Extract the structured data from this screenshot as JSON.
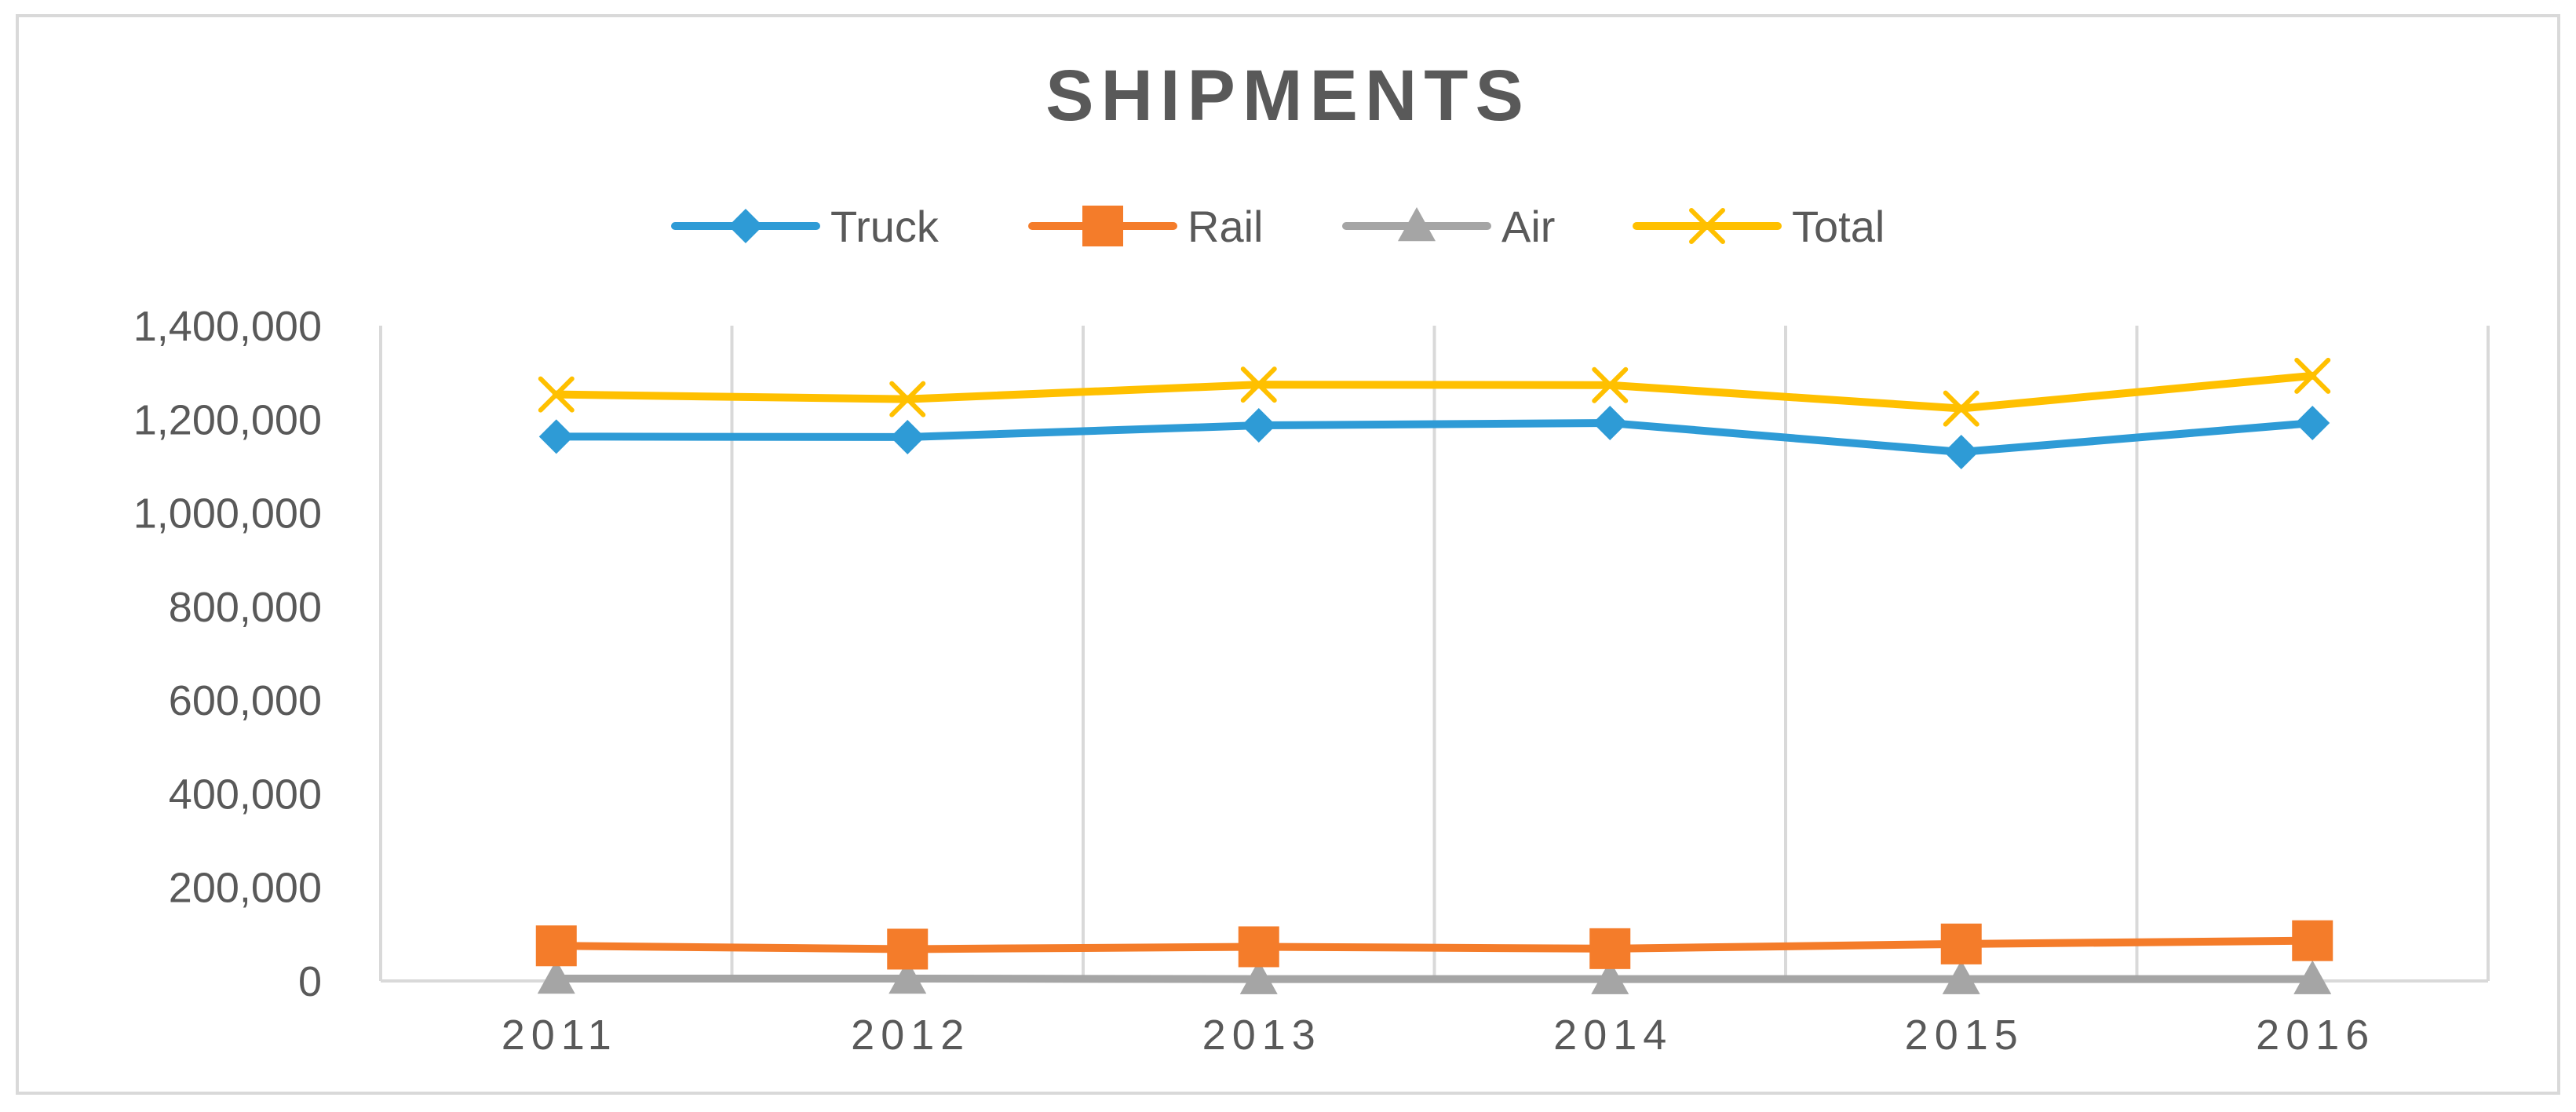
{
  "chart_data": {
    "type": "line",
    "title": "SHIPMENTS",
    "categories": [
      "2011",
      "2012",
      "2013",
      "2014",
      "2015",
      "2016"
    ],
    "series": [
      {
        "name": "Truck",
        "color": "#2e9bd6",
        "marker": "diamond",
        "values": [
          1163000,
          1162000,
          1187000,
          1192000,
          1130000,
          1192000
        ]
      },
      {
        "name": "Rail",
        "color": "#f47c2a",
        "marker": "square",
        "values": [
          75000,
          68000,
          73000,
          69000,
          79000,
          86000
        ]
      },
      {
        "name": "Air",
        "color": "#a5a5a5",
        "marker": "triangle",
        "values": [
          5000,
          5000,
          4000,
          4000,
          4000,
          4000
        ]
      },
      {
        "name": "Total",
        "color": "#ffc000",
        "marker": "x",
        "values": [
          1253000,
          1243000,
          1274000,
          1273000,
          1223000,
          1293000
        ]
      }
    ],
    "ylim": [
      0,
      1400000
    ],
    "yticks": [
      "0",
      "200,000",
      "400,000",
      "600,000",
      "800,000",
      "1,000,000",
      "1,200,000",
      "1,400,000"
    ],
    "xlabel": "",
    "ylabel": "",
    "grid": "vertical",
    "legend": "top"
  }
}
